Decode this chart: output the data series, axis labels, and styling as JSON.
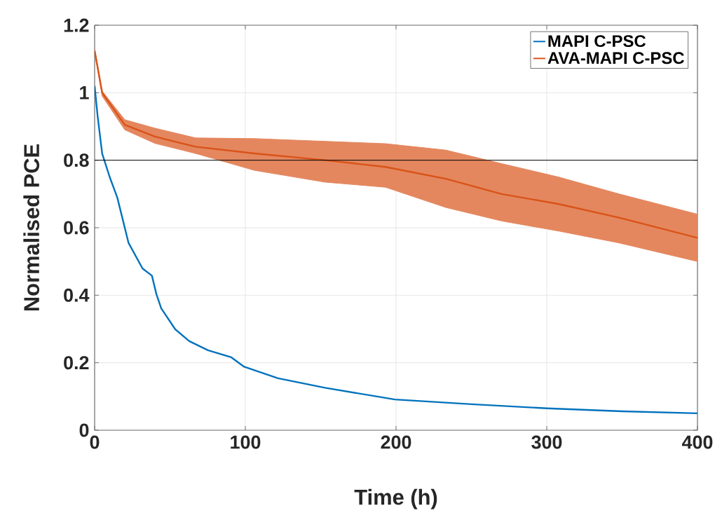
{
  "chart_data": {
    "type": "line",
    "xlabel": "Time (h)",
    "ylabel": "Normalised PCE",
    "xlim": [
      0,
      400
    ],
    "xticks": [
      0,
      100,
      200,
      300,
      400
    ],
    "ylim": [
      0,
      1.2
    ],
    "yticks": [
      0,
      0.2,
      0.4,
      0.6,
      0.8,
      1,
      1.2
    ],
    "grid": true,
    "legend": "top right",
    "marker": "none",
    "line_style": "solid",
    "ref_lines": [
      {
        "axis": "y",
        "value": 0.8,
        "color": "#000000"
      }
    ],
    "series": [
      {
        "name": "MAPI C-PSC",
        "color": "#0072bd",
        "x": [
          0,
          2,
          5,
          10,
          15,
          22.5,
          31.8,
          38,
          41,
          44.2,
          53.5,
          62.8,
          75.2,
          90.7,
          99.2,
          121.7,
          152.7,
          199.2,
          250,
          300,
          350,
          400
        ],
        "values": [
          1.02,
          0.93,
          0.82,
          0.75,
          0.69,
          0.555,
          0.479,
          0.458,
          0.403,
          0.361,
          0.299,
          0.264,
          0.237,
          0.216,
          0.188,
          0.154,
          0.126,
          0.091,
          0.077,
          0.065,
          0.056,
          0.05
        ]
      },
      {
        "name": "AVA-MAPI C-PSC",
        "color": "#d95319",
        "x": [
          0,
          5,
          20,
          40,
          67,
          106,
          153,
          193,
          233,
          270,
          308,
          348,
          400
        ],
        "values": [
          1.125,
          1.0,
          0.905,
          0.87,
          0.84,
          0.82,
          0.8,
          0.78,
          0.745,
          0.7,
          0.67,
          0.63,
          0.57
        ],
        "lower": [
          1.12,
          0.99,
          0.89,
          0.85,
          0.82,
          0.77,
          0.735,
          0.72,
          0.66,
          0.62,
          0.59,
          0.555,
          0.5
        ],
        "upper": [
          1.13,
          1.005,
          0.92,
          0.895,
          0.866,
          0.864,
          0.856,
          0.849,
          0.83,
          0.79,
          0.75,
          0.7,
          0.64
        ]
      }
    ]
  }
}
